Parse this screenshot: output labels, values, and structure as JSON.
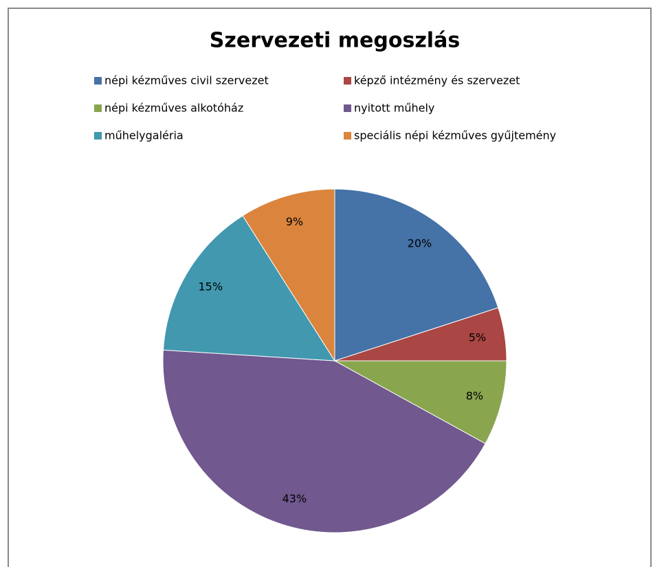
{
  "chart_data": {
    "type": "pie",
    "title": "Szervezeti megoszlás",
    "categories": [
      "népi kézműves civil szervezet",
      "képző intézmény és szervezet",
      "népi kézműves alkotóház",
      "nyitott műhely",
      "műhelygaléria",
      "speciális népi kézműves gyűjtemény"
    ],
    "values": [
      20,
      5,
      8,
      43,
      15,
      9
    ],
    "value_labels": [
      "20%",
      "5%",
      "8%",
      "43%",
      "15%",
      "9%"
    ],
    "colors": [
      "#4572a7",
      "#aa4643",
      "#89a54e",
      "#71588f",
      "#4198af",
      "#db843d"
    ],
    "legend": "top"
  }
}
